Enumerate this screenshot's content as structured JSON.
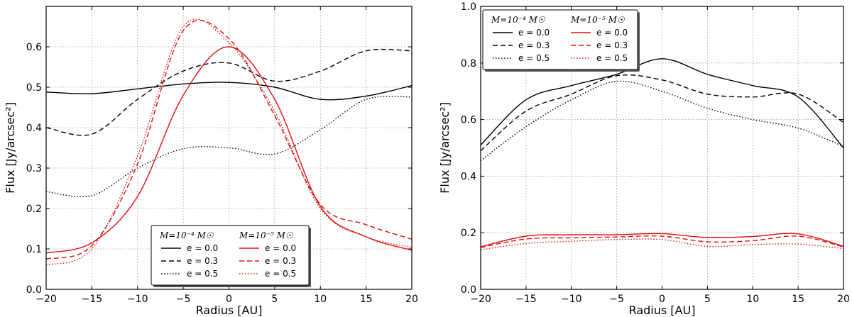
{
  "chart_data": [
    {
      "type": "line",
      "xlabel": "Radius [AU]",
      "ylabel": "Flux [Jy/arcsec²]",
      "xlim": [
        -20,
        20
      ],
      "ylim": [
        0.0,
        0.7
      ],
      "xticks": [
        "−20",
        "−15",
        "−10",
        "−5",
        "0",
        "5",
        "10",
        "15",
        "20"
      ],
      "yticks": [
        "0.0",
        "0.1",
        "0.2",
        "0.3",
        "0.4",
        "0.5",
        "0.6"
      ],
      "grid": true,
      "legend_position": "bottom-center",
      "legend": {
        "group1_title": "M=10⁻⁴ M☉",
        "group2_title": "M=10⁻⁵ M☉",
        "entries": [
          "e = 0.0",
          "e = 0.3",
          "e = 0.5"
        ]
      },
      "x": [
        -20,
        -15,
        -10,
        -5,
        0,
        5,
        10,
        15,
        20
      ],
      "series": [
        {
          "group": "M=1e-4",
          "e": "0.0",
          "color": "#000000",
          "style": "solid",
          "values": [
            0.488,
            0.484,
            0.496,
            0.508,
            0.512,
            0.5,
            0.47,
            0.478,
            0.504
          ]
        },
        {
          "group": "M=1e-4",
          "e": "0.3",
          "color": "#000000",
          "style": "dashed",
          "values": [
            0.4,
            0.384,
            0.47,
            0.54,
            0.56,
            0.515,
            0.54,
            0.59,
            0.59
          ]
        },
        {
          "group": "M=1e-4",
          "e": "0.5",
          "color": "#000000",
          "style": "dotted",
          "values": [
            0.242,
            0.232,
            0.3,
            0.348,
            0.35,
            0.335,
            0.395,
            0.47,
            0.476
          ]
        },
        {
          "group": "M=1e-5",
          "e": "0.0",
          "color": "#dd1111",
          "style": "solid",
          "values": [
            0.09,
            0.115,
            0.23,
            0.48,
            0.6,
            0.47,
            0.205,
            0.13,
            0.097
          ]
        },
        {
          "group": "M=1e-5",
          "e": "0.3",
          "color": "#dd1111",
          "style": "dashed",
          "values": [
            0.075,
            0.108,
            0.31,
            0.64,
            0.62,
            0.43,
            0.21,
            0.16,
            0.124
          ]
        },
        {
          "group": "M=1e-5",
          "e": "0.5",
          "color": "#dd1111",
          "style": "dotted",
          "values": [
            0.06,
            0.1,
            0.33,
            0.65,
            0.61,
            0.44,
            0.2,
            0.13,
            0.104
          ]
        }
      ]
    },
    {
      "type": "line",
      "xlabel": "Radius [AU]",
      "ylabel": "Flux [Jy/arcsec²]",
      "xlim": [
        -20,
        20
      ],
      "ylim": [
        0.0,
        1.0
      ],
      "xticks": [
        "−20",
        "−15",
        "−10",
        "−5",
        "0",
        "5",
        "10",
        "15",
        "20"
      ],
      "yticks": [
        "0.0",
        "0.2",
        "0.4",
        "0.6",
        "0.8",
        "1.0"
      ],
      "grid": true,
      "legend_position": "top-left",
      "legend": {
        "group1_title": "M=10⁻⁴ M☉",
        "group2_title": "M=10⁻⁵ M☉",
        "entries": [
          "e = 0.0",
          "e = 0.3",
          "e = 0.5"
        ]
      },
      "x": [
        -20,
        -15,
        -10,
        -5,
        0,
        5,
        10,
        15,
        20
      ],
      "series": [
        {
          "group": "M=1e-4",
          "e": "0.0",
          "color": "#000000",
          "style": "solid",
          "values": [
            0.51,
            0.67,
            0.72,
            0.76,
            0.815,
            0.76,
            0.72,
            0.68,
            0.5
          ]
        },
        {
          "group": "M=1e-4",
          "e": "0.3",
          "color": "#000000",
          "style": "dashed",
          "values": [
            0.49,
            0.63,
            0.69,
            0.755,
            0.74,
            0.69,
            0.68,
            0.69,
            0.59
          ]
        },
        {
          "group": "M=1e-4",
          "e": "0.5",
          "color": "#000000",
          "style": "dotted",
          "values": [
            0.455,
            0.575,
            0.67,
            0.735,
            0.7,
            0.64,
            0.6,
            0.57,
            0.505
          ]
        },
        {
          "group": "M=1e-5",
          "e": "0.0",
          "color": "#dd1111",
          "style": "solid",
          "values": [
            0.15,
            0.188,
            0.193,
            0.193,
            0.197,
            0.183,
            0.187,
            0.196,
            0.152
          ]
        },
        {
          "group": "M=1e-5",
          "e": "0.3",
          "color": "#dd1111",
          "style": "dashed",
          "values": [
            0.148,
            0.178,
            0.182,
            0.185,
            0.188,
            0.168,
            0.172,
            0.188,
            0.15
          ]
        },
        {
          "group": "M=1e-5",
          "e": "0.5",
          "color": "#dd1111",
          "style": "dotted",
          "values": [
            0.14,
            0.162,
            0.17,
            0.176,
            0.176,
            0.152,
            0.158,
            0.16,
            0.144
          ]
        }
      ]
    }
  ]
}
